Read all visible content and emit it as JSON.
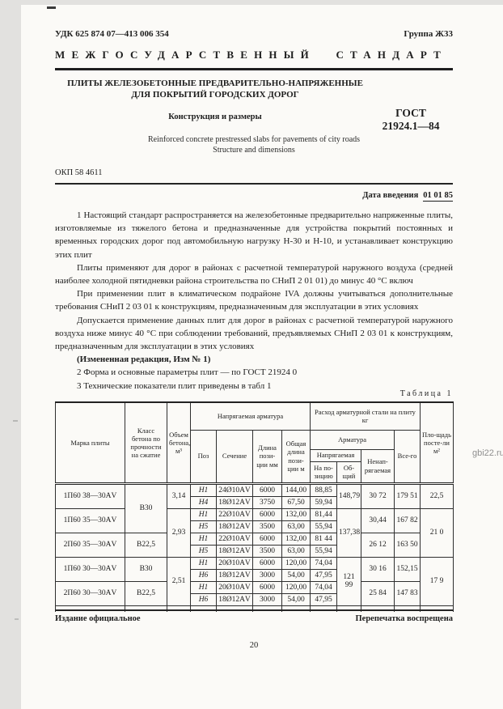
{
  "page": {
    "udk": "УДК 625 874 07—413 006 354",
    "group": "Группа Ж33",
    "standard_type": "МЕЖГОСУДАРСТВЕННЫЙ СТАНДАРТ",
    "title_line1": "ПЛИТЫ ЖЕЛЕЗОБЕТОННЫЕ ПРЕДВАРИТЕЛЬНО-НАПРЯЖЕННЫЕ",
    "title_line2": "ДЛЯ ПОКРЫТИЙ ГОРОДСКИХ ДОРОГ",
    "subtitle": "Конструкция и размеры",
    "gost_label": "ГОСТ",
    "gost_number": "21924.1—84",
    "title_en_line1": "Reinforced concrete prestressed slabs for pavements of city roads",
    "title_en_line2": "Structure and dimensions",
    "okp": "ОКП 58 4611",
    "date_label": "Дата введения",
    "date_value": "01 01 85",
    "paragraphs": {
      "p1": "1 Настоящий стандарт распространяется на железобетонные предварительно напряженные плиты, изготовляемые из тяжелого бетона и предназначенные для устройства покрытий постоянных и временных городских дорог под автомобильную нагрузку Н-30 и Н-10, и устанавливает конструкцию этих плит",
      "p2": "Плиты применяют для дорог в районах с расчетной температурой наружного воздуха (средней наиболее холодной пятидневки района строительства по СНиП 2 01 01) до минус 40 °С включ",
      "p3": "При применении плит в климатическом подрайоне IVA должны учитываться дополнительные требования СНиП  2 03 01 к конструкциям,  предназначенным  для  эксплуатации  в  этих условиях",
      "p4": "Допускается применение данных плит для дорог в районах с расчетной температурой наружного воздуха ниже минус 40 °С при соблюдении требований, предъявляемых СНиП 2 03 01 к конструкциям, предназначенным для эксплуатации в этих условиях",
      "p5": "(Измененная редакция, Изм  № 1)",
      "p6": "2 Форма и основные параметры плит — по ГОСТ 21924 0",
      "p7": "3 Технические показатели плит приведены в табл  1"
    },
    "table_label": "Таблица 1",
    "footer_left": "Издание официальное",
    "footer_right": "Перепечатка воспрещена",
    "page_number": "20",
    "watermark": "gbi22.ru"
  },
  "table": {
    "headers": {
      "marka": "Марка плиты",
      "klass": "Класс бетона по прочности на сжатие",
      "obem": "Объем бетона, м³",
      "napr_armatura": "Напрягаемая арматура",
      "poz": "Поз",
      "sechenie": "Сечение",
      "dlina": "Длина пози-ции  мм",
      "obshch_dlina": "Общая длина пози-ции  м",
      "rashod": "Расход арматурной стали на плиту  кг",
      "armatura": "Арматура",
      "napryagaemaya": "Напрягаемая",
      "na_poz": "На по-зицию",
      "obshchiy": "Об-щий",
      "nenapr": "Ненап-рягаемая",
      "vsego": "Все-го",
      "ploshchad": "Пло-щадь посте-ли  м²"
    },
    "rows": [
      {
        "marka": "1П60 38—30АV",
        "klass": "В30",
        "obem": "3,14",
        "poz": "Н1",
        "sech": "24Ø10АV",
        "dlina": "6000",
        "odl": "144,00",
        "napoz": "88,85",
        "obshchiy": "148,79",
        "nenapr": "30 72",
        "vsego": "179 51",
        "plo": "22,5"
      },
      {
        "poz": "Н4",
        "sech": "18Ø12АV",
        "dlina": "3750",
        "odl": "67,50",
        "napoz": "59,94"
      },
      {
        "marka": "1П60 35—30АV",
        "obem": "2,93",
        "poz": "Н1",
        "sech": "22Ø10АV",
        "dlina": "6000",
        "odl": "132,00",
        "napoz": "81,44",
        "obshchiy": "137,38",
        "nenapr": "30,44",
        "vsego": "167 82",
        "plo": "21 0"
      },
      {
        "poz": "Н5",
        "sech": "18Ø12АV",
        "dlina": "3500",
        "odl": "63,00",
        "napoz": "55,94"
      },
      {
        "marka": "2П60 35—30АV",
        "klass": "В22,5",
        "poz": "Н1",
        "sech": "22Ø10АV",
        "dlina": "6000",
        "odl": "132,00",
        "napoz": "81 44",
        "nenapr": "26 12",
        "vsego": "163 50"
      },
      {
        "poz": "Н5",
        "sech": "18Ø12АV",
        "dlina": "3500",
        "odl": "63,00",
        "napoz": "55,94"
      },
      {
        "marka": "1П60 30—30АV",
        "klass": "В30",
        "obem": "2,51",
        "poz": "Н1",
        "sech": "20Ø10АV",
        "dlina": "6000",
        "odl": "120,00",
        "napoz": "74,04",
        "obshchiy": "121 99",
        "nenapr": "30 16",
        "vsego": "152,15",
        "plo": "17 9"
      },
      {
        "poz": "Н6",
        "sech": "18Ø12АV",
        "dlina": "3000",
        "odl": "54,00",
        "napoz": "47,95"
      },
      {
        "marka": "2П60 30—30АV",
        "klass": "В22,5",
        "poz": "Н1",
        "sech": "20Ø10АV",
        "dlina": "6000",
        "odl": "120,00",
        "napoz": "74,04",
        "nenapr": "25 84",
        "vsego": "147 83"
      },
      {
        "poz": "Н6",
        "sech": "18Ø12АV",
        "dlina": "3000",
        "odl": "54,00",
        "napoz": "47,95"
      }
    ]
  }
}
